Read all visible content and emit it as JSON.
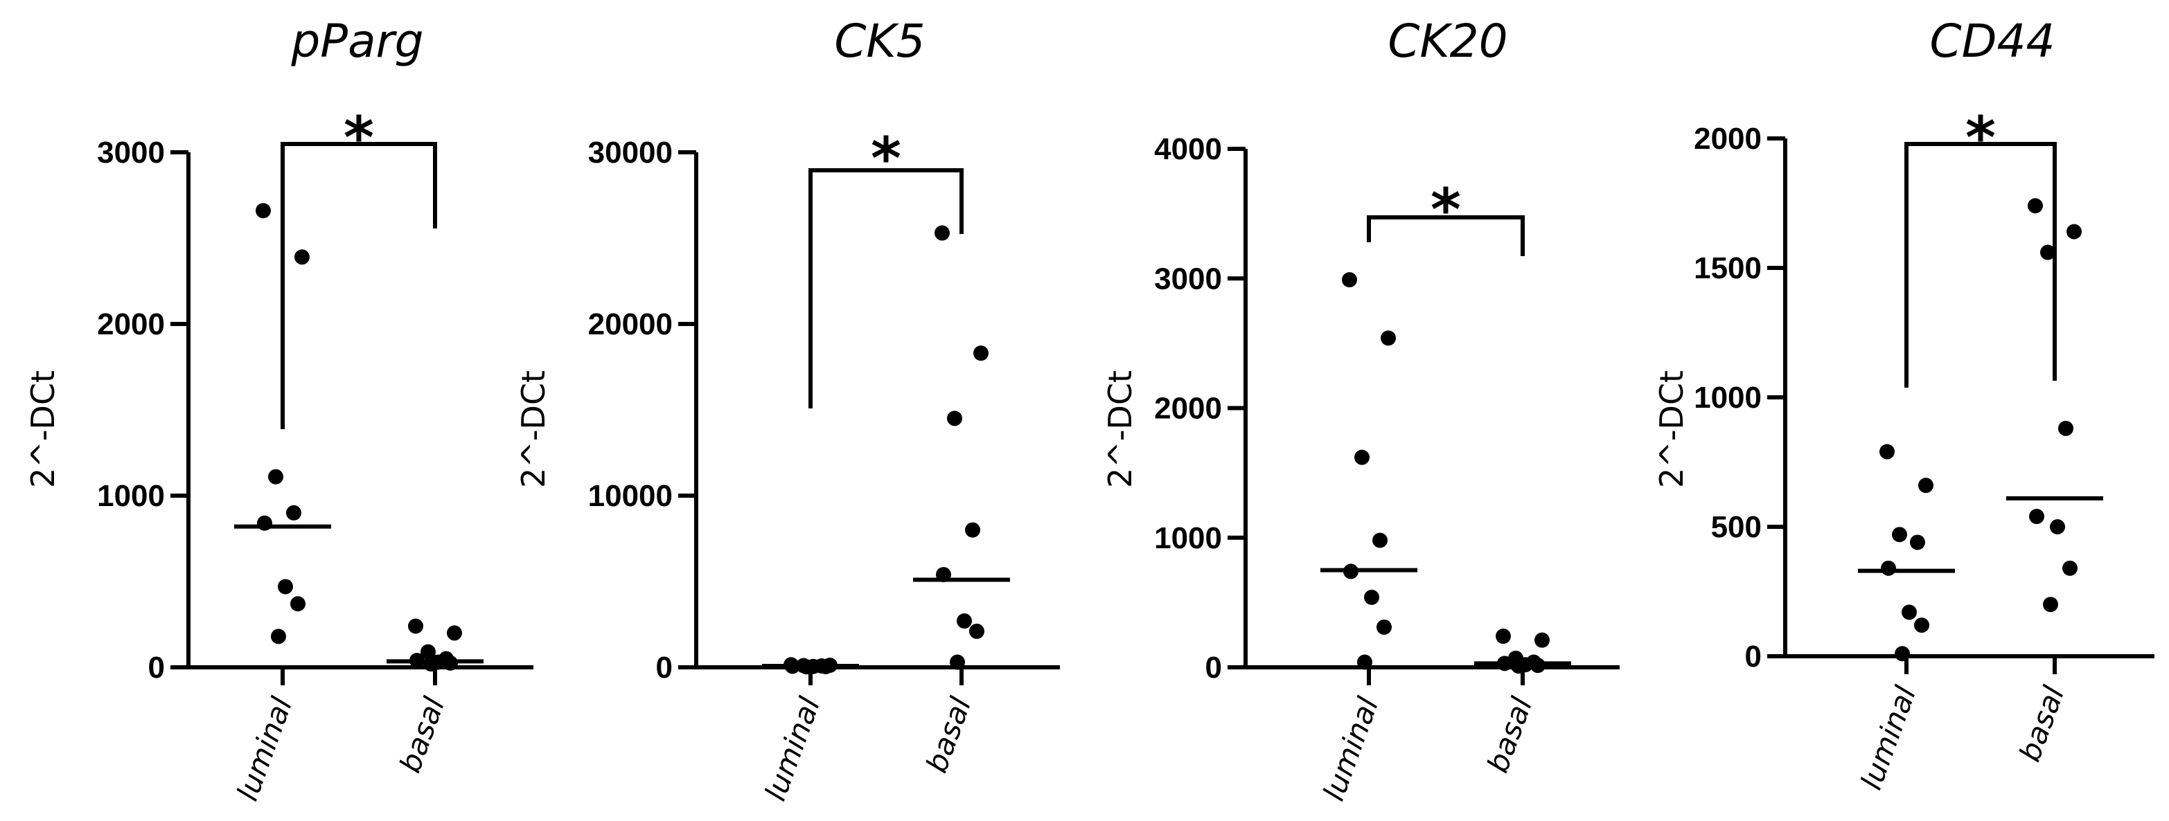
{
  "chart_data": [
    {
      "type": "scatter",
      "title": "pParg",
      "xlabel": "",
      "ylabel": "2^-DCt",
      "categories": [
        "luminal",
        "basal"
      ],
      "ylim": [
        0,
        3000
      ],
      "yticks": [
        0,
        1000,
        2000,
        3000
      ],
      "ytick_labels": [
        "0",
        "1000",
        "2000",
        "3000"
      ],
      "series": [
        {
          "name": "luminal",
          "values": [
            2660,
            2390,
            1110,
            900,
            840,
            470,
            370,
            180
          ],
          "median": 820
        },
        {
          "name": "basal",
          "values": [
            240,
            200,
            90,
            50,
            40,
            30,
            25,
            20
          ],
          "median": 35
        }
      ],
      "significance": "*"
    },
    {
      "type": "scatter",
      "title": "CK5",
      "xlabel": "",
      "ylabel": "2^-DCt",
      "categories": [
        "luminal",
        "basal"
      ],
      "ylim": [
        0,
        30000
      ],
      "yticks": [
        0,
        10000,
        20000,
        30000
      ],
      "ytick_labels": [
        "0",
        "10000",
        "20000",
        "30000"
      ],
      "series": [
        {
          "name": "luminal",
          "values": [
            150,
            120,
            100,
            80,
            60,
            50,
            40,
            30
          ],
          "median": 80
        },
        {
          "name": "basal",
          "values": [
            25300,
            18300,
            14500,
            8000,
            5400,
            2700,
            2100,
            300
          ],
          "median": 5100
        }
      ],
      "significance": "*"
    },
    {
      "type": "scatter",
      "title": "CK20",
      "xlabel": "",
      "ylabel": "2^-DCt",
      "categories": [
        "luminal",
        "basal"
      ],
      "ylim": [
        0,
        4000
      ],
      "yticks": [
        0,
        1000,
        2000,
        3000,
        4000
      ],
      "ytick_labels": [
        "0",
        "1000",
        "2000",
        "3000",
        "4000"
      ],
      "series": [
        {
          "name": "luminal",
          "values": [
            2990,
            2540,
            1620,
            980,
            740,
            540,
            310,
            40
          ],
          "median": 750
        },
        {
          "name": "basal",
          "values": [
            240,
            210,
            70,
            40,
            30,
            20,
            15,
            10
          ],
          "median": 30
        }
      ],
      "significance": "*"
    },
    {
      "type": "scatter",
      "title": "CD44",
      "xlabel": "",
      "ylabel": "2^-DCt",
      "categories": [
        "luminal",
        "basal"
      ],
      "ylim": [
        0,
        2000
      ],
      "yticks": [
        0,
        500,
        1000,
        1500,
        2000
      ],
      "ytick_labels": [
        "0",
        "500",
        "1000",
        "1500",
        "2000"
      ],
      "series": [
        {
          "name": "luminal",
          "values": [
            790,
            660,
            470,
            440,
            340,
            170,
            120,
            10
          ],
          "median": 330
        },
        {
          "name": "basal",
          "values": [
            1740,
            1640,
            1560,
            880,
            540,
            500,
            340,
            200
          ],
          "median": 610
        }
      ],
      "significance": "*"
    }
  ]
}
